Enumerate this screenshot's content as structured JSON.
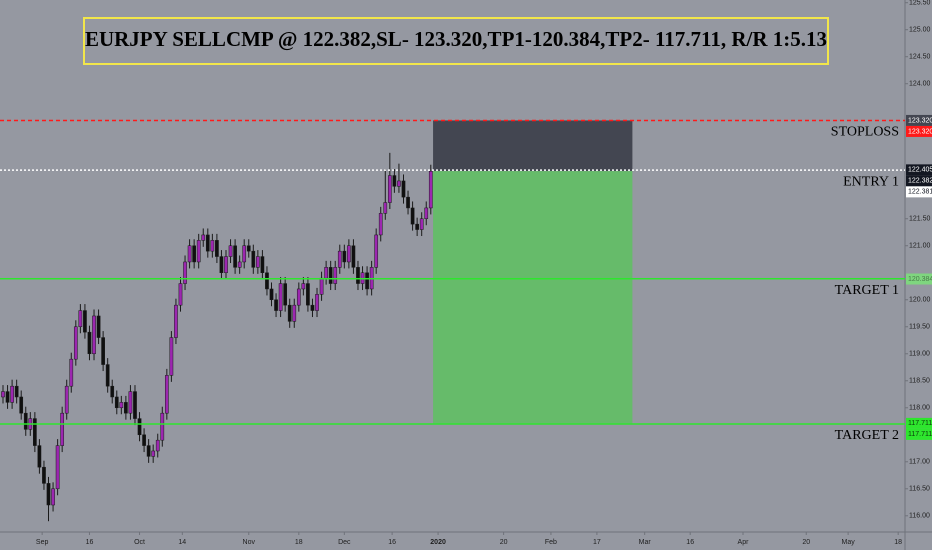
{
  "chart_data": {
    "type": "candlestick",
    "title": "EURJPY SELLCMP @ 122.382,SL- 123.320,TP1-120.384,TP2- 117.711, R/R 1:5.13",
    "open": [
      118.2,
      118.3,
      118.1,
      118.4,
      118.2,
      117.9,
      117.6,
      117.8,
      117.3,
      116.9,
      116.6,
      116.2,
      116.5,
      117.3,
      117.9,
      118.4,
      118.9,
      119.5,
      119.8,
      119.4,
      119.0,
      119.7,
      119.3,
      118.8,
      118.4,
      118.2,
      118.0,
      118.1,
      117.9,
      118.3,
      117.8,
      117.5,
      117.3,
      117.1,
      117.2,
      117.4,
      117.9,
      118.6,
      119.3,
      119.9,
      120.3,
      120.7,
      121.0,
      120.7,
      121.1,
      121.2,
      120.9,
      121.1,
      120.8,
      120.5,
      120.8,
      121.0,
      120.6,
      120.7,
      121.0,
      120.9,
      120.6,
      120.8,
      120.5,
      120.2,
      120.0,
      119.8,
      120.3,
      119.9,
      119.6,
      119.9,
      120.2,
      120.3,
      119.9,
      119.8,
      120.1,
      120.4,
      120.6,
      120.3,
      120.6,
      120.9,
      120.7,
      121.0,
      120.6,
      120.3,
      120.5,
      120.2,
      120.6,
      121.2,
      121.6,
      121.8,
      122.3,
      122.1,
      122.2,
      121.9,
      121.7,
      121.4,
      121.3,
      121.5,
      121.7
    ],
    "high": [
      118.42,
      118.42,
      118.52,
      118.52,
      118.32,
      118.02,
      117.92,
      117.92,
      117.42,
      117.02,
      116.72,
      116.62,
      117.42,
      118.02,
      118.52,
      119.02,
      119.62,
      119.92,
      119.92,
      119.52,
      119.82,
      119.82,
      119.42,
      118.92,
      118.52,
      118.32,
      118.22,
      118.22,
      118.42,
      118.42,
      117.92,
      117.62,
      117.42,
      117.32,
      117.52,
      118.02,
      118.72,
      119.42,
      120.02,
      120.42,
      120.82,
      121.12,
      121.12,
      121.22,
      121.32,
      121.32,
      121.22,
      121.22,
      120.92,
      120.92,
      121.12,
      121.12,
      120.82,
      121.12,
      121.12,
      121.02,
      120.92,
      120.92,
      120.62,
      120.32,
      120.12,
      120.42,
      120.42,
      120.02,
      120.02,
      120.32,
      120.42,
      120.42,
      120.02,
      120.22,
      120.52,
      120.72,
      120.72,
      120.72,
      121.02,
      121.02,
      121.12,
      121.12,
      120.72,
      120.62,
      120.62,
      120.72,
      121.32,
      121.72,
      122.42,
      122.72,
      122.42,
      122.52,
      122.32,
      122.02,
      121.82,
      121.52,
      121.62,
      121.82,
      122.5
    ],
    "low": [
      118.08,
      117.98,
      117.98,
      118.08,
      117.78,
      117.48,
      117.48,
      117.18,
      116.78,
      116.48,
      115.9,
      116.08,
      116.38,
      117.18,
      117.78,
      118.28,
      118.78,
      119.38,
      119.28,
      118.88,
      118.88,
      119.18,
      118.68,
      118.28,
      118.08,
      117.88,
      117.88,
      117.78,
      117.78,
      117.68,
      117.38,
      117.18,
      116.98,
      116.98,
      117.08,
      117.28,
      117.78,
      118.48,
      119.18,
      119.78,
      120.18,
      120.58,
      120.58,
      120.58,
      120.98,
      120.78,
      120.78,
      120.68,
      120.38,
      120.38,
      120.68,
      120.48,
      120.48,
      120.58,
      120.78,
      120.48,
      120.48,
      120.38,
      120.08,
      119.88,
      119.68,
      119.68,
      119.78,
      119.48,
      119.48,
      119.78,
      120.08,
      119.78,
      119.68,
      119.68,
      119.98,
      120.28,
      120.18,
      120.18,
      120.48,
      120.58,
      120.58,
      120.48,
      120.18,
      120.18,
      120.08,
      120.08,
      120.48,
      121.08,
      121.48,
      121.68,
      121.98,
      121.98,
      121.78,
      121.58,
      121.28,
      121.18,
      121.18,
      121.38,
      121.58
    ],
    "close": [
      118.3,
      118.1,
      118.4,
      118.2,
      117.9,
      117.6,
      117.8,
      117.3,
      116.9,
      116.6,
      116.2,
      116.5,
      117.3,
      117.9,
      118.4,
      118.9,
      119.5,
      119.8,
      119.4,
      119.0,
      119.7,
      119.3,
      118.8,
      118.4,
      118.2,
      118.0,
      118.1,
      117.9,
      118.3,
      117.8,
      117.5,
      117.3,
      117.1,
      117.2,
      117.4,
      117.9,
      118.6,
      119.3,
      119.9,
      120.3,
      120.7,
      121.0,
      120.7,
      121.1,
      121.2,
      120.9,
      121.1,
      120.8,
      120.5,
      120.8,
      121.0,
      120.6,
      120.7,
      121.0,
      120.9,
      120.6,
      120.8,
      120.5,
      120.2,
      120.0,
      119.8,
      120.3,
      119.9,
      119.6,
      119.9,
      120.2,
      120.3,
      119.9,
      119.8,
      120.1,
      120.4,
      120.6,
      120.3,
      120.6,
      120.9,
      120.7,
      121.0,
      120.6,
      120.3,
      120.5,
      120.2,
      120.6,
      121.2,
      121.6,
      121.8,
      122.3,
      122.1,
      122.2,
      121.9,
      121.7,
      121.4,
      121.3,
      121.5,
      121.7,
      122.38
    ],
    "up_color": "#9c27b0",
    "down_color": "#101010",
    "xlim": [
      -0.66,
      198.2
    ],
    "xticks": [
      {
        "value": 8.6,
        "label": "Sep"
      },
      {
        "value": 19,
        "label": "16"
      },
      {
        "value": 30,
        "label": "Oct"
      },
      {
        "value": 39.4,
        "label": "14"
      },
      {
        "value": 54,
        "label": "Nov"
      },
      {
        "value": 65,
        "label": "18"
      },
      {
        "value": 75,
        "label": "Dec"
      },
      {
        "value": 85.5,
        "label": "16"
      },
      {
        "value": 95.6,
        "label": "2020"
      },
      {
        "value": 110,
        "label": "20"
      },
      {
        "value": 120.4,
        "label": "Feb"
      },
      {
        "value": 130.5,
        "label": "17"
      },
      {
        "value": 141,
        "label": "Mar"
      },
      {
        "value": 151,
        "label": "16"
      },
      {
        "value": 162.6,
        "label": "Apr"
      },
      {
        "value": 176.5,
        "label": "20"
      },
      {
        "value": 185.7,
        "label": "May"
      },
      {
        "value": 196.7,
        "label": "18"
      }
    ],
    "ylim": [
      115.7,
      125.55
    ],
    "yticks": [
      {
        "value": 116,
        "label": "116.00"
      },
      {
        "value": 116.5,
        "label": "116.50"
      },
      {
        "value": 117,
        "label": "117.00"
      },
      {
        "value": 118,
        "label": "118.00"
      },
      {
        "value": 118.5,
        "label": "118.50"
      },
      {
        "value": 119,
        "label": "119.00"
      },
      {
        "value": 119.5,
        "label": "119.50"
      },
      {
        "value": 120,
        "label": "120.00"
      },
      {
        "value": 121,
        "label": "121.00"
      },
      {
        "value": 121.5,
        "label": "121.50"
      },
      {
        "value": 124,
        "label": "124.00"
      },
      {
        "value": 124.5,
        "label": "124.50"
      },
      {
        "value": 125,
        "label": "125.00"
      },
      {
        "value": 125.5,
        "label": "125.50"
      }
    ],
    "levels": [
      {
        "label": "STOPLOSS",
        "value": 123.32,
        "color": "#ff1a1a",
        "style": "dashed"
      },
      {
        "label": "ENTRY 1",
        "value": 122.4,
        "color": "#ffffff",
        "style": "dotted"
      },
      {
        "label": "TARGET 1",
        "value": 120.39,
        "color": "#2ee62e",
        "style": "solid"
      },
      {
        "label": "TARGET 2",
        "value": 117.7,
        "color": "#2ee62e",
        "style": "solid"
      }
    ],
    "position": {
      "stop": 123.32,
      "entry": 122.382,
      "target": 117.711,
      "from": 94.5,
      "to": 138.3,
      "risk_color": "#434651",
      "reward_color": "#66bb6a"
    },
    "price_tags": [
      {
        "value": 123.32,
        "label": "123.320",
        "bg": "#434651",
        "fg": "#ffffff"
      },
      {
        "value": 123.32,
        "label": "123.320",
        "bg": "#ff1a1a",
        "fg": "#ffffff"
      },
      {
        "value": 122.405,
        "label": "122.405",
        "bg": "#131722",
        "fg": "#ffffff"
      },
      {
        "value": 122.382,
        "label": "122.382",
        "bg": "#131722",
        "fg": "#ffffff"
      },
      {
        "value": 122.381,
        "label": "122.381",
        "bg": "#ffffff",
        "fg": "#131722"
      },
      {
        "value": 120.384,
        "label": "120.384",
        "bg": "#7fd67f",
        "fg": "#4a7a4a"
      },
      {
        "value": 117.711,
        "label": "117.711",
        "bg": "#2ee62e",
        "fg": "#0a3a0a"
      },
      {
        "value": 117.711,
        "label": "117.711",
        "bg": "#2ee62e",
        "fg": "#0a3a0a"
      }
    ]
  }
}
